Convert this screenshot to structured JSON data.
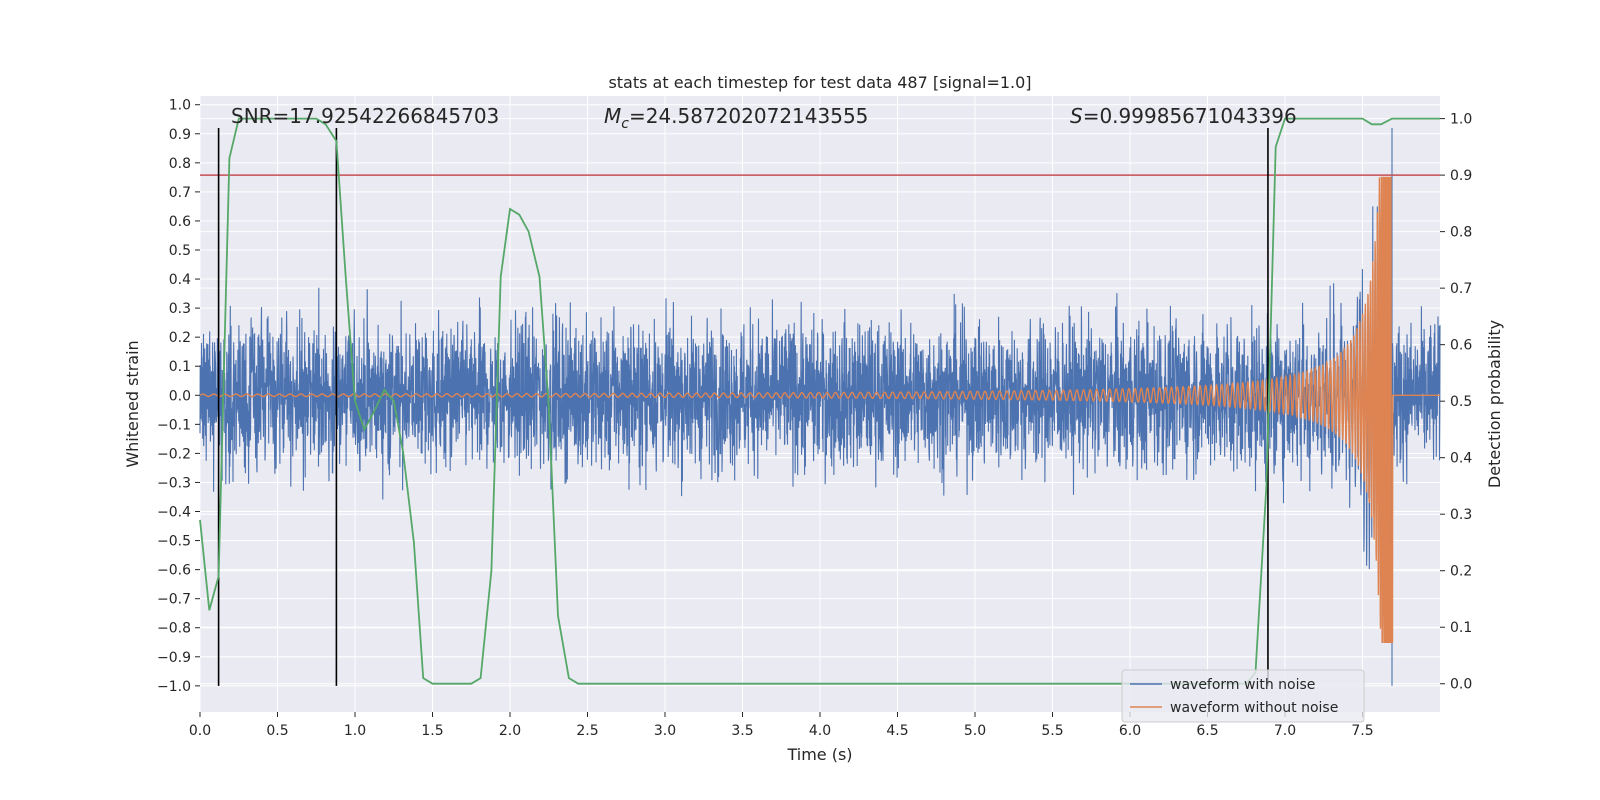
{
  "chart_data": {
    "type": "line",
    "title": "stats at each timestep for test data 487 [signal=1.0]",
    "xlabel": "Time (s)",
    "ylabel_left": "Whitened strain",
    "ylabel_right": "Detection probability",
    "xlim": [
      0,
      8
    ],
    "ylim_left": [
      -1.09,
      1.03
    ],
    "ylim_right": [
      -0.05,
      1.04
    ],
    "x_ticks": [
      0.0,
      0.5,
      1.0,
      1.5,
      2.0,
      2.5,
      3.0,
      3.5,
      4.0,
      4.5,
      5.0,
      5.5,
      6.0,
      6.5,
      7.0,
      7.5
    ],
    "y_ticks_left": [
      -1.0,
      -0.9,
      -0.8,
      -0.7,
      -0.6,
      -0.5,
      -0.4,
      -0.3,
      -0.2,
      -0.1,
      0.0,
      0.1,
      0.2,
      0.3,
      0.4,
      0.5,
      0.6,
      0.7,
      0.8,
      0.9,
      1.0
    ],
    "y_ticks_right": [
      0.0,
      0.1,
      0.2,
      0.3,
      0.4,
      0.5,
      0.6,
      0.7,
      0.8,
      0.9,
      1.0
    ],
    "grid": true,
    "legend_position": "bottom-right",
    "annotations": {
      "snr": "SNR=17.92542266845703",
      "mc_symbol": "M",
      "mc_sub": "c",
      "mc_value": "=24.587202072143555",
      "s_symbol": "S",
      "s_value": "=0.99985671043396"
    },
    "threshold_right": 0.9,
    "vertical_markers_x": [
      0.12,
      0.88,
      6.89
    ],
    "vertical_markers_y": [
      -1.0,
      0.92
    ],
    "series": [
      {
        "name": "waveform with noise",
        "color": "#4c72b0",
        "axis": "left",
        "noise_envelope": {
          "typical_amplitude": 0.3,
          "max_amplitude": 0.65,
          "min_amplitude": -0.62
        }
      },
      {
        "name": "waveform without noise",
        "color": "#dd8452",
        "axis": "left",
        "chirp": {
          "merger_time": 7.69,
          "peak_amplitude": 0.75,
          "trough_amplitude": -0.85
        }
      },
      {
        "name": "",
        "color": "#55a868",
        "axis": "right",
        "x": [
          0.0,
          0.06,
          0.12,
          0.19,
          0.25,
          0.31,
          0.38,
          0.5,
          0.62,
          0.75,
          0.81,
          0.88,
          0.94,
          1.0,
          1.06,
          1.12,
          1.19,
          1.25,
          1.31,
          1.38,
          1.44,
          1.5,
          1.62,
          1.75,
          1.81,
          1.88,
          1.94,
          2.0,
          2.06,
          2.12,
          2.19,
          2.25,
          2.31,
          2.38,
          2.44,
          2.5,
          3.0,
          4.0,
          5.0,
          6.0,
          6.5,
          6.75,
          6.81,
          6.88,
          6.94,
          7.0,
          7.06,
          7.12,
          7.25,
          7.5,
          7.56,
          7.62,
          7.69,
          7.75,
          8.0
        ],
        "y": [
          0.29,
          0.13,
          0.19,
          0.93,
          1.0,
          1.0,
          1.0,
          1.0,
          1.0,
          1.0,
          0.99,
          0.96,
          0.72,
          0.5,
          0.45,
          0.48,
          0.52,
          0.5,
          0.41,
          0.25,
          0.01,
          0.0,
          0.0,
          0.0,
          0.01,
          0.2,
          0.72,
          0.84,
          0.83,
          0.8,
          0.72,
          0.49,
          0.12,
          0.01,
          0.0,
          0.0,
          0.0,
          0.0,
          0.0,
          0.0,
          0.0,
          0.0,
          0.02,
          0.35,
          0.95,
          1.0,
          1.0,
          1.0,
          1.0,
          1.0,
          0.99,
          0.99,
          1.0,
          1.0,
          1.0
        ]
      }
    ]
  }
}
